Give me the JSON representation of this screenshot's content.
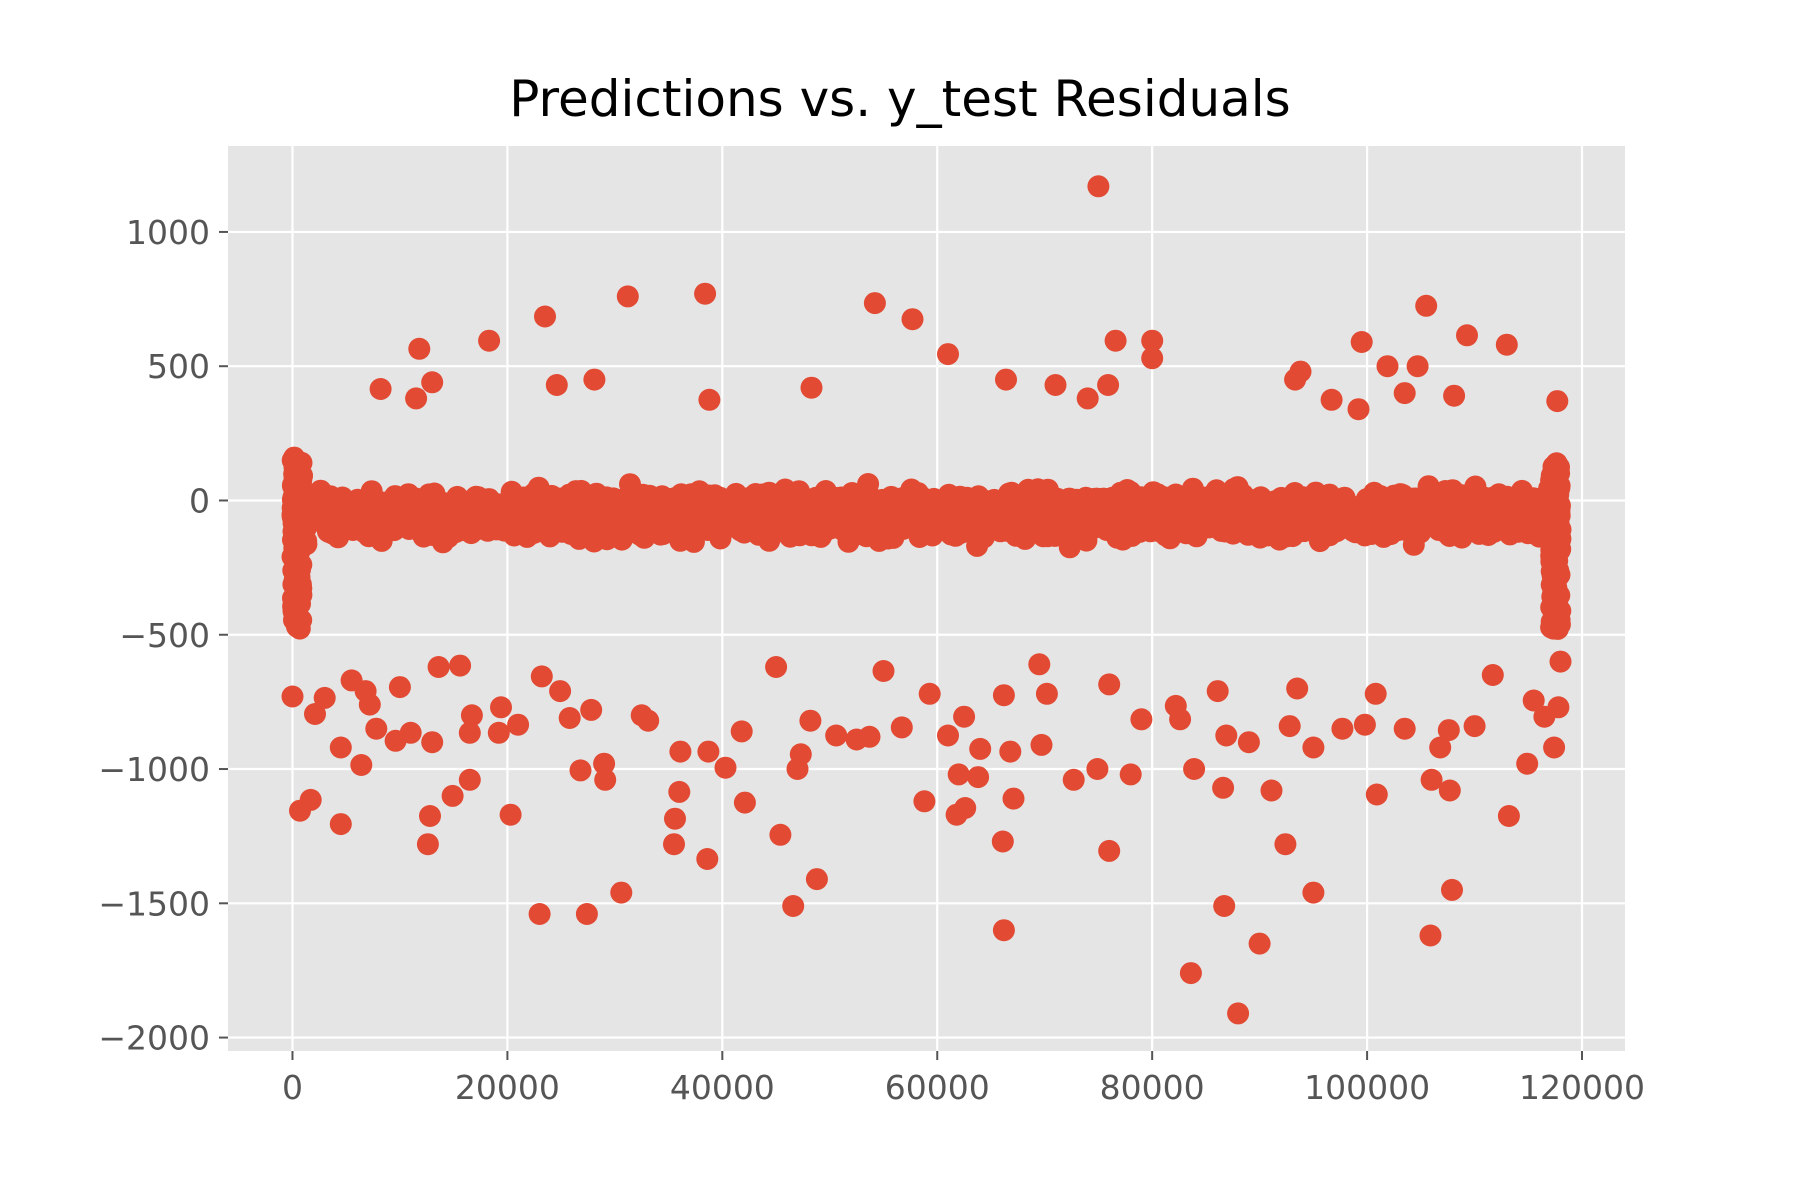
{
  "chart_data": {
    "type": "scatter",
    "title": "Predictions vs. y_test Residuals",
    "xlabel": "",
    "ylabel": "",
    "xlim": [
      -6000,
      124000
    ],
    "ylim": [
      -2050,
      1320
    ],
    "xticks": [
      0,
      20000,
      40000,
      60000,
      80000,
      100000,
      120000
    ],
    "xtick_labels": [
      "0",
      "20000",
      "40000",
      "60000",
      "80000",
      "100000",
      "120000"
    ],
    "yticks": [
      -2000,
      -1500,
      -1000,
      -500,
      0,
      500,
      1000
    ],
    "ytick_labels": [
      "−2000",
      "−1500",
      "−1000",
      "−500",
      "0",
      "500",
      "1000"
    ],
    "grid": true,
    "style": "ggplot",
    "colors": {
      "marker": "#E24A33",
      "panel": "#E5E5E5",
      "grid": "#FFFFFF",
      "tick_text": "#555555"
    },
    "series": [
      {
        "band": {
          "x_range": [
            0,
            118000
          ],
          "y_range": [
            -300,
            200
          ],
          "count": 2600
        },
        "points": [
          [
            75000,
            1170
          ],
          [
            38400,
            770
          ],
          [
            31200,
            760
          ],
          [
            54200,
            735
          ],
          [
            105500,
            725
          ],
          [
            23500,
            685
          ],
          [
            57700,
            675
          ],
          [
            109300,
            615
          ],
          [
            76600,
            595
          ],
          [
            80000,
            595
          ],
          [
            18300,
            595
          ],
          [
            99500,
            590
          ],
          [
            113000,
            580
          ],
          [
            11800,
            565
          ],
          [
            61000,
            545
          ],
          [
            80000,
            530
          ],
          [
            101900,
            500
          ],
          [
            104700,
            500
          ],
          [
            93800,
            480
          ],
          [
            93300,
            450
          ],
          [
            28100,
            450
          ],
          [
            13000,
            440
          ],
          [
            66400,
            450
          ],
          [
            71000,
            430
          ],
          [
            75900,
            430
          ],
          [
            24600,
            430
          ],
          [
            8200,
            415
          ],
          [
            48300,
            420
          ],
          [
            103500,
            400
          ],
          [
            108100,
            390
          ],
          [
            11500,
            380
          ],
          [
            38800,
            375
          ],
          [
            74000,
            380
          ],
          [
            96700,
            375
          ],
          [
            117700,
            370
          ],
          [
            99200,
            340
          ],
          [
            45000,
            -620
          ],
          [
            89000,
            -900
          ],
          [
            95000,
            -920
          ],
          [
            74900,
            -1000
          ],
          [
            58800,
            -1120
          ],
          [
            62000,
            -1020
          ],
          [
            61800,
            -1170
          ],
          [
            62600,
            -1145
          ],
          [
            63800,
            -1030
          ],
          [
            66100,
            -1270
          ],
          [
            67100,
            -1110
          ],
          [
            72700,
            -1040
          ],
          [
            78000,
            -1020
          ],
          [
            66200,
            -1600
          ],
          [
            76000,
            -1305
          ],
          [
            83600,
            -1760
          ],
          [
            83900,
            -1000
          ],
          [
            86600,
            -1070
          ],
          [
            86700,
            -1510
          ],
          [
            88000,
            -1910
          ],
          [
            90000,
            -1650
          ],
          [
            91100,
            -1080
          ],
          [
            92400,
            -1280
          ],
          [
            95000,
            -1460
          ],
          [
            100900,
            -1095
          ],
          [
            105900,
            -1620
          ],
          [
            106000,
            -1040
          ],
          [
            107700,
            -1080
          ],
          [
            107900,
            -1450
          ],
          [
            113200,
            -1175
          ],
          [
            114900,
            -980
          ],
          [
            117400,
            -920
          ],
          [
            46600,
            -1510
          ],
          [
            48800,
            -1410
          ],
          [
            45400,
            -1245
          ],
          [
            42100,
            -1125
          ],
          [
            38600,
            -1335
          ],
          [
            35500,
            -1280
          ],
          [
            35600,
            -1185
          ],
          [
            36000,
            -1085
          ],
          [
            40300,
            -995
          ],
          [
            30600,
            -1460
          ],
          [
            27400,
            -1540
          ],
          [
            23000,
            -1540
          ],
          [
            26800,
            -1005
          ],
          [
            29100,
            -1040
          ],
          [
            29000,
            -980
          ],
          [
            20300,
            -1170
          ],
          [
            12600,
            -1280
          ],
          [
            12800,
            -1175
          ],
          [
            14900,
            -1100
          ],
          [
            16500,
            -1040
          ],
          [
            4500,
            -1205
          ],
          [
            4500,
            -920
          ],
          [
            6400,
            -985
          ],
          [
            700,
            -1155
          ],
          [
            1700,
            -1115
          ],
          [
            9600,
            -895
          ],
          [
            11000,
            -865
          ],
          [
            13000,
            -900
          ],
          [
            2100,
            -795
          ],
          [
            0,
            -730
          ],
          [
            3000,
            -735
          ],
          [
            7800,
            -850
          ],
          [
            16500,
            -865
          ],
          [
            19200,
            -865
          ],
          [
            21000,
            -835
          ],
          [
            16700,
            -800
          ],
          [
            19400,
            -770
          ],
          [
            7200,
            -760
          ],
          [
            6800,
            -710
          ],
          [
            5500,
            -670
          ],
          [
            10000,
            -695
          ],
          [
            13600,
            -620
          ],
          [
            15600,
            -615
          ],
          [
            23200,
            -655
          ],
          [
            24900,
            -710
          ],
          [
            25800,
            -810
          ],
          [
            27800,
            -780
          ],
          [
            33100,
            -820
          ],
          [
            32500,
            -800
          ],
          [
            36100,
            -935
          ],
          [
            38700,
            -935
          ],
          [
            41800,
            -860
          ],
          [
            48200,
            -820
          ],
          [
            47300,
            -945
          ],
          [
            47000,
            -1000
          ],
          [
            50600,
            -875
          ],
          [
            52500,
            -890
          ],
          [
            53700,
            -880
          ],
          [
            56700,
            -845
          ],
          [
            55000,
            -635
          ],
          [
            59300,
            -720
          ],
          [
            61000,
            -875
          ],
          [
            62500,
            -805
          ],
          [
            64000,
            -925
          ],
          [
            66200,
            -725
          ],
          [
            66800,
            -935
          ],
          [
            69700,
            -910
          ],
          [
            70200,
            -720
          ],
          [
            69500,
            -610
          ],
          [
            76000,
            -685
          ],
          [
            79000,
            -815
          ],
          [
            82200,
            -765
          ],
          [
            82600,
            -815
          ],
          [
            86100,
            -710
          ],
          [
            86900,
            -875
          ],
          [
            92800,
            -840
          ],
          [
            93500,
            -700
          ],
          [
            97700,
            -850
          ],
          [
            99800,
            -835
          ],
          [
            100800,
            -720
          ],
          [
            103500,
            -850
          ],
          [
            106800,
            -920
          ],
          [
            107600,
            -855
          ],
          [
            110000,
            -840
          ],
          [
            111700,
            -650
          ],
          [
            115500,
            -745
          ],
          [
            116500,
            -805
          ],
          [
            117800,
            -770
          ],
          [
            118000,
            -600
          ]
        ]
      }
    ]
  }
}
